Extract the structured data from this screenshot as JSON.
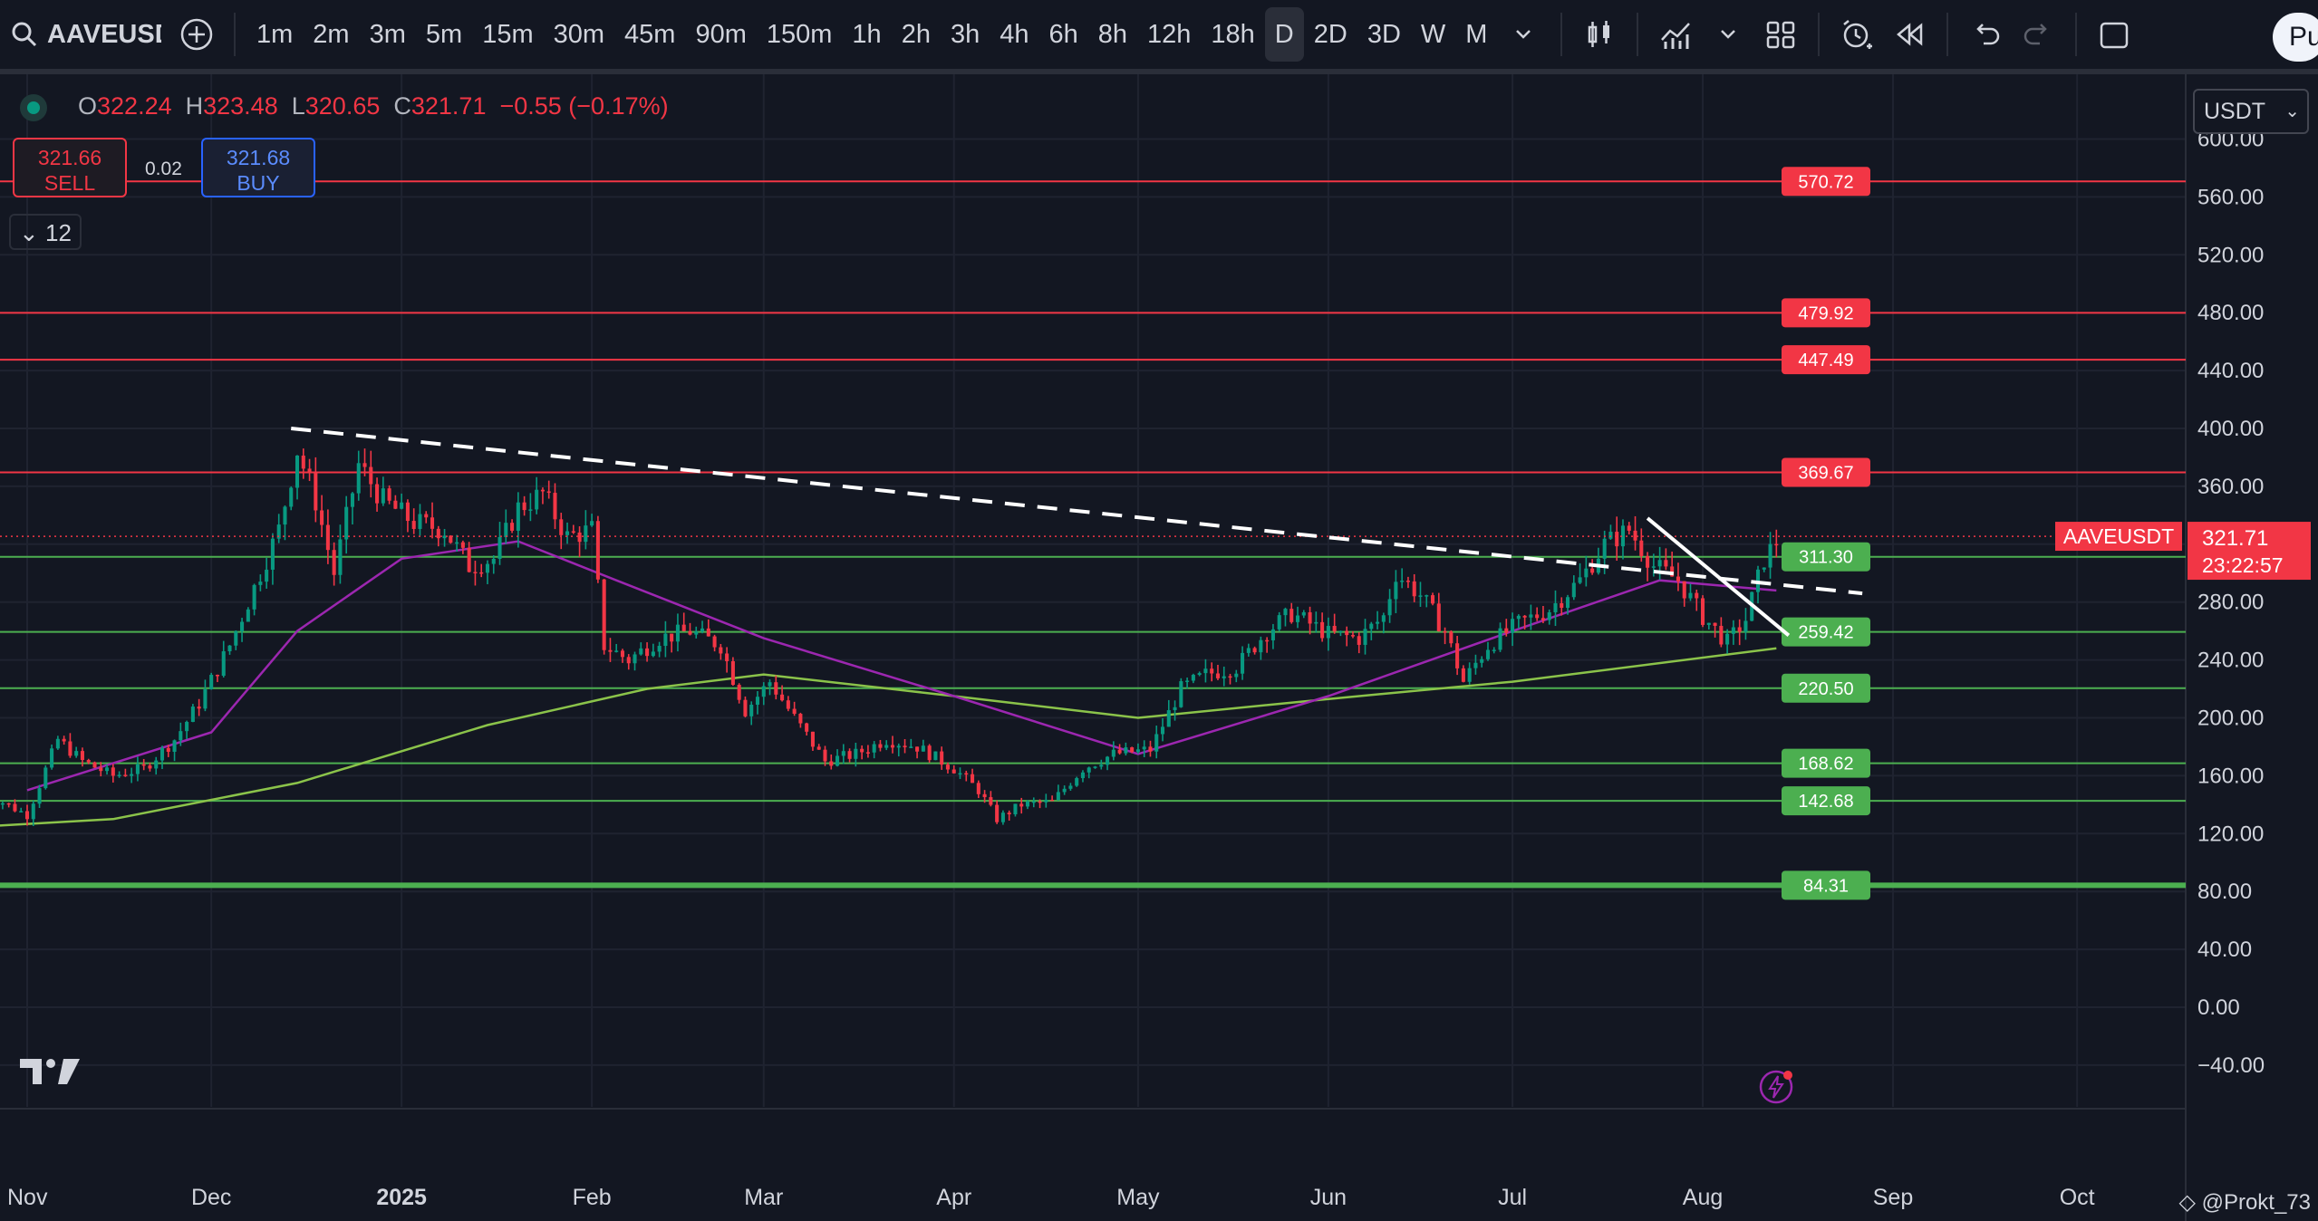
{
  "toolbar": {
    "symbol": "AAVEUSDT",
    "intervals": [
      "1m",
      "2m",
      "3m",
      "5m",
      "15m",
      "30m",
      "45m",
      "90m",
      "150m",
      "1h",
      "2h",
      "3h",
      "4h",
      "6h",
      "8h",
      "12h",
      "18h",
      "D",
      "2D",
      "3D",
      "W",
      "M"
    ],
    "active_interval": "D",
    "publish_label": "Pu"
  },
  "legend": {
    "o_label": "O",
    "o": "322.24",
    "h_label": "H",
    "h": "323.48",
    "l_label": "L",
    "l": "320.65",
    "c_label": "C",
    "c": "321.71",
    "change": "−0.55 (−0.17%)"
  },
  "trade": {
    "sell_price": "321.66",
    "sell_label": "SELL",
    "buy_price": "321.68",
    "buy_label": "BUY",
    "spread": "0.02"
  },
  "indicators_count": "12",
  "currency": "USDT",
  "watermark": "@Prokt_73",
  "chart_data": {
    "type": "candlestick",
    "symbol": "AAVEUSDT",
    "timeframe": "D",
    "x_axis_labels": [
      "Nov",
      "Dec",
      "2025",
      "Feb",
      "Mar",
      "Apr",
      "May",
      "Jun",
      "Jul",
      "Aug",
      "Sep",
      "Oct"
    ],
    "y_axis_ticks": [
      "600.00",
      "560.00",
      "520.00",
      "480.00",
      "440.00",
      "400.00",
      "360.00",
      "320.00",
      "280.00",
      "240.00",
      "200.00",
      "160.00",
      "120.00",
      "80.00",
      "40.00",
      "0.00",
      "−40.00"
    ],
    "ylim": [
      -60,
      620
    ],
    "last_price": {
      "label": "AAVEUSDT",
      "value": "321.71",
      "countdown": "23:22:57"
    },
    "resistance_levels": [
      "570.72",
      "479.92",
      "447.49",
      "369.67"
    ],
    "support_levels": [
      "311.30",
      "259.42",
      "220.50",
      "168.62",
      "142.68",
      "84.31"
    ],
    "price_path": [
      [
        "2024-10-25",
        148
      ],
      [
        "2024-11-01",
        133
      ],
      [
        "2024-11-06",
        185
      ],
      [
        "2024-11-10",
        170
      ],
      [
        "2024-11-15",
        160
      ],
      [
        "2024-11-20",
        165
      ],
      [
        "2024-11-25",
        185
      ],
      [
        "2024-11-29",
        210
      ],
      [
        "2024-12-04",
        250
      ],
      [
        "2024-12-08",
        290
      ],
      [
        "2024-12-12",
        330
      ],
      [
        "2024-12-15",
        385
      ],
      [
        "2024-12-18",
        350
      ],
      [
        "2024-12-21",
        300
      ],
      [
        "2024-12-25",
        375
      ],
      [
        "2024-12-29",
        350
      ],
      [
        "2025-01-03",
        335
      ],
      [
        "2025-01-08",
        330
      ],
      [
        "2025-01-12",
        305
      ],
      [
        "2025-01-16",
        310
      ],
      [
        "2025-01-20",
        345
      ],
      [
        "2025-01-24",
        355
      ],
      [
        "2025-01-28",
        325
      ],
      [
        "2025-02-01",
        330
      ],
      [
        "2025-02-03",
        250
      ],
      [
        "2025-02-07",
        240
      ],
      [
        "2025-02-12",
        255
      ],
      [
        "2025-02-17",
        260
      ],
      [
        "2025-02-22",
        250
      ],
      [
        "2025-02-26",
        205
      ],
      [
        "2025-03-02",
        225
      ],
      [
        "2025-03-06",
        200
      ],
      [
        "2025-03-11",
        170
      ],
      [
        "2025-03-16",
        175
      ],
      [
        "2025-03-21",
        185
      ],
      [
        "2025-03-26",
        180
      ],
      [
        "2025-04-01",
        165
      ],
      [
        "2025-04-05",
        150
      ],
      [
        "2025-04-08",
        130
      ],
      [
        "2025-04-12",
        140
      ],
      [
        "2025-04-17",
        142
      ],
      [
        "2025-04-22",
        165
      ],
      [
        "2025-04-27",
        175
      ],
      [
        "2025-05-03",
        178
      ],
      [
        "2025-05-08",
        220
      ],
      [
        "2025-05-12",
        230
      ],
      [
        "2025-05-17",
        235
      ],
      [
        "2025-05-22",
        260
      ],
      [
        "2025-05-26",
        272
      ],
      [
        "2025-06-01",
        258
      ],
      [
        "2025-06-06",
        255
      ],
      [
        "2025-06-10",
        270
      ],
      [
        "2025-06-12",
        300
      ],
      [
        "2025-06-16",
        285
      ],
      [
        "2025-06-20",
        260
      ],
      [
        "2025-06-23",
        225
      ],
      [
        "2025-06-27",
        250
      ],
      [
        "2025-07-02",
        265
      ],
      [
        "2025-07-07",
        275
      ],
      [
        "2025-07-12",
        295
      ],
      [
        "2025-07-16",
        320
      ],
      [
        "2025-07-20",
        330
      ],
      [
        "2025-07-24",
        305
      ],
      [
        "2025-07-28",
        295
      ],
      [
        "2025-08-01",
        270
      ],
      [
        "2025-08-05",
        252
      ],
      [
        "2025-08-08",
        268
      ],
      [
        "2025-08-11",
        310
      ],
      [
        "2025-08-13",
        321.71
      ]
    ],
    "ma_fast": [
      [
        "2024-11-01",
        150
      ],
      [
        "2024-12-01",
        190
      ],
      [
        "2024-12-15",
        260
      ],
      [
        "2025-01-01",
        310
      ],
      [
        "2025-01-20",
        322
      ],
      [
        "2025-02-05",
        295
      ],
      [
        "2025-03-01",
        255
      ],
      [
        "2025-04-01",
        215
      ],
      [
        "2025-05-01",
        175
      ],
      [
        "2025-06-01",
        215
      ],
      [
        "2025-07-01",
        260
      ],
      [
        "2025-07-25",
        295
      ],
      [
        "2025-08-13",
        288
      ]
    ],
    "ma_slow": [
      [
        "2024-10-25",
        125
      ],
      [
        "2024-11-15",
        130
      ],
      [
        "2024-12-15",
        155
      ],
      [
        "2025-01-15",
        195
      ],
      [
        "2025-02-10",
        220
      ],
      [
        "2025-03-01",
        230
      ],
      [
        "2025-04-01",
        215
      ],
      [
        "2025-05-01",
        200
      ],
      [
        "2025-06-01",
        213
      ],
      [
        "2025-07-01",
        225
      ],
      [
        "2025-08-13",
        248
      ]
    ],
    "trendlines": [
      {
        "style": "dashed",
        "from": [
          "2024-12-14",
          400
        ],
        "to": [
          "2025-08-27",
          286
        ]
      },
      {
        "style": "solid",
        "from": [
          "2025-07-23",
          338
        ],
        "to": [
          "2025-08-15",
          257
        ]
      }
    ],
    "colors": {
      "up": "#089981",
      "down": "#f23645",
      "resistance": "#f23645",
      "support": "#4caf50",
      "ma_fast": "#9c27b0",
      "ma_slow": "#8bc34a",
      "trendline": "#ffffff",
      "background": "#131722"
    },
    "grid": true
  }
}
